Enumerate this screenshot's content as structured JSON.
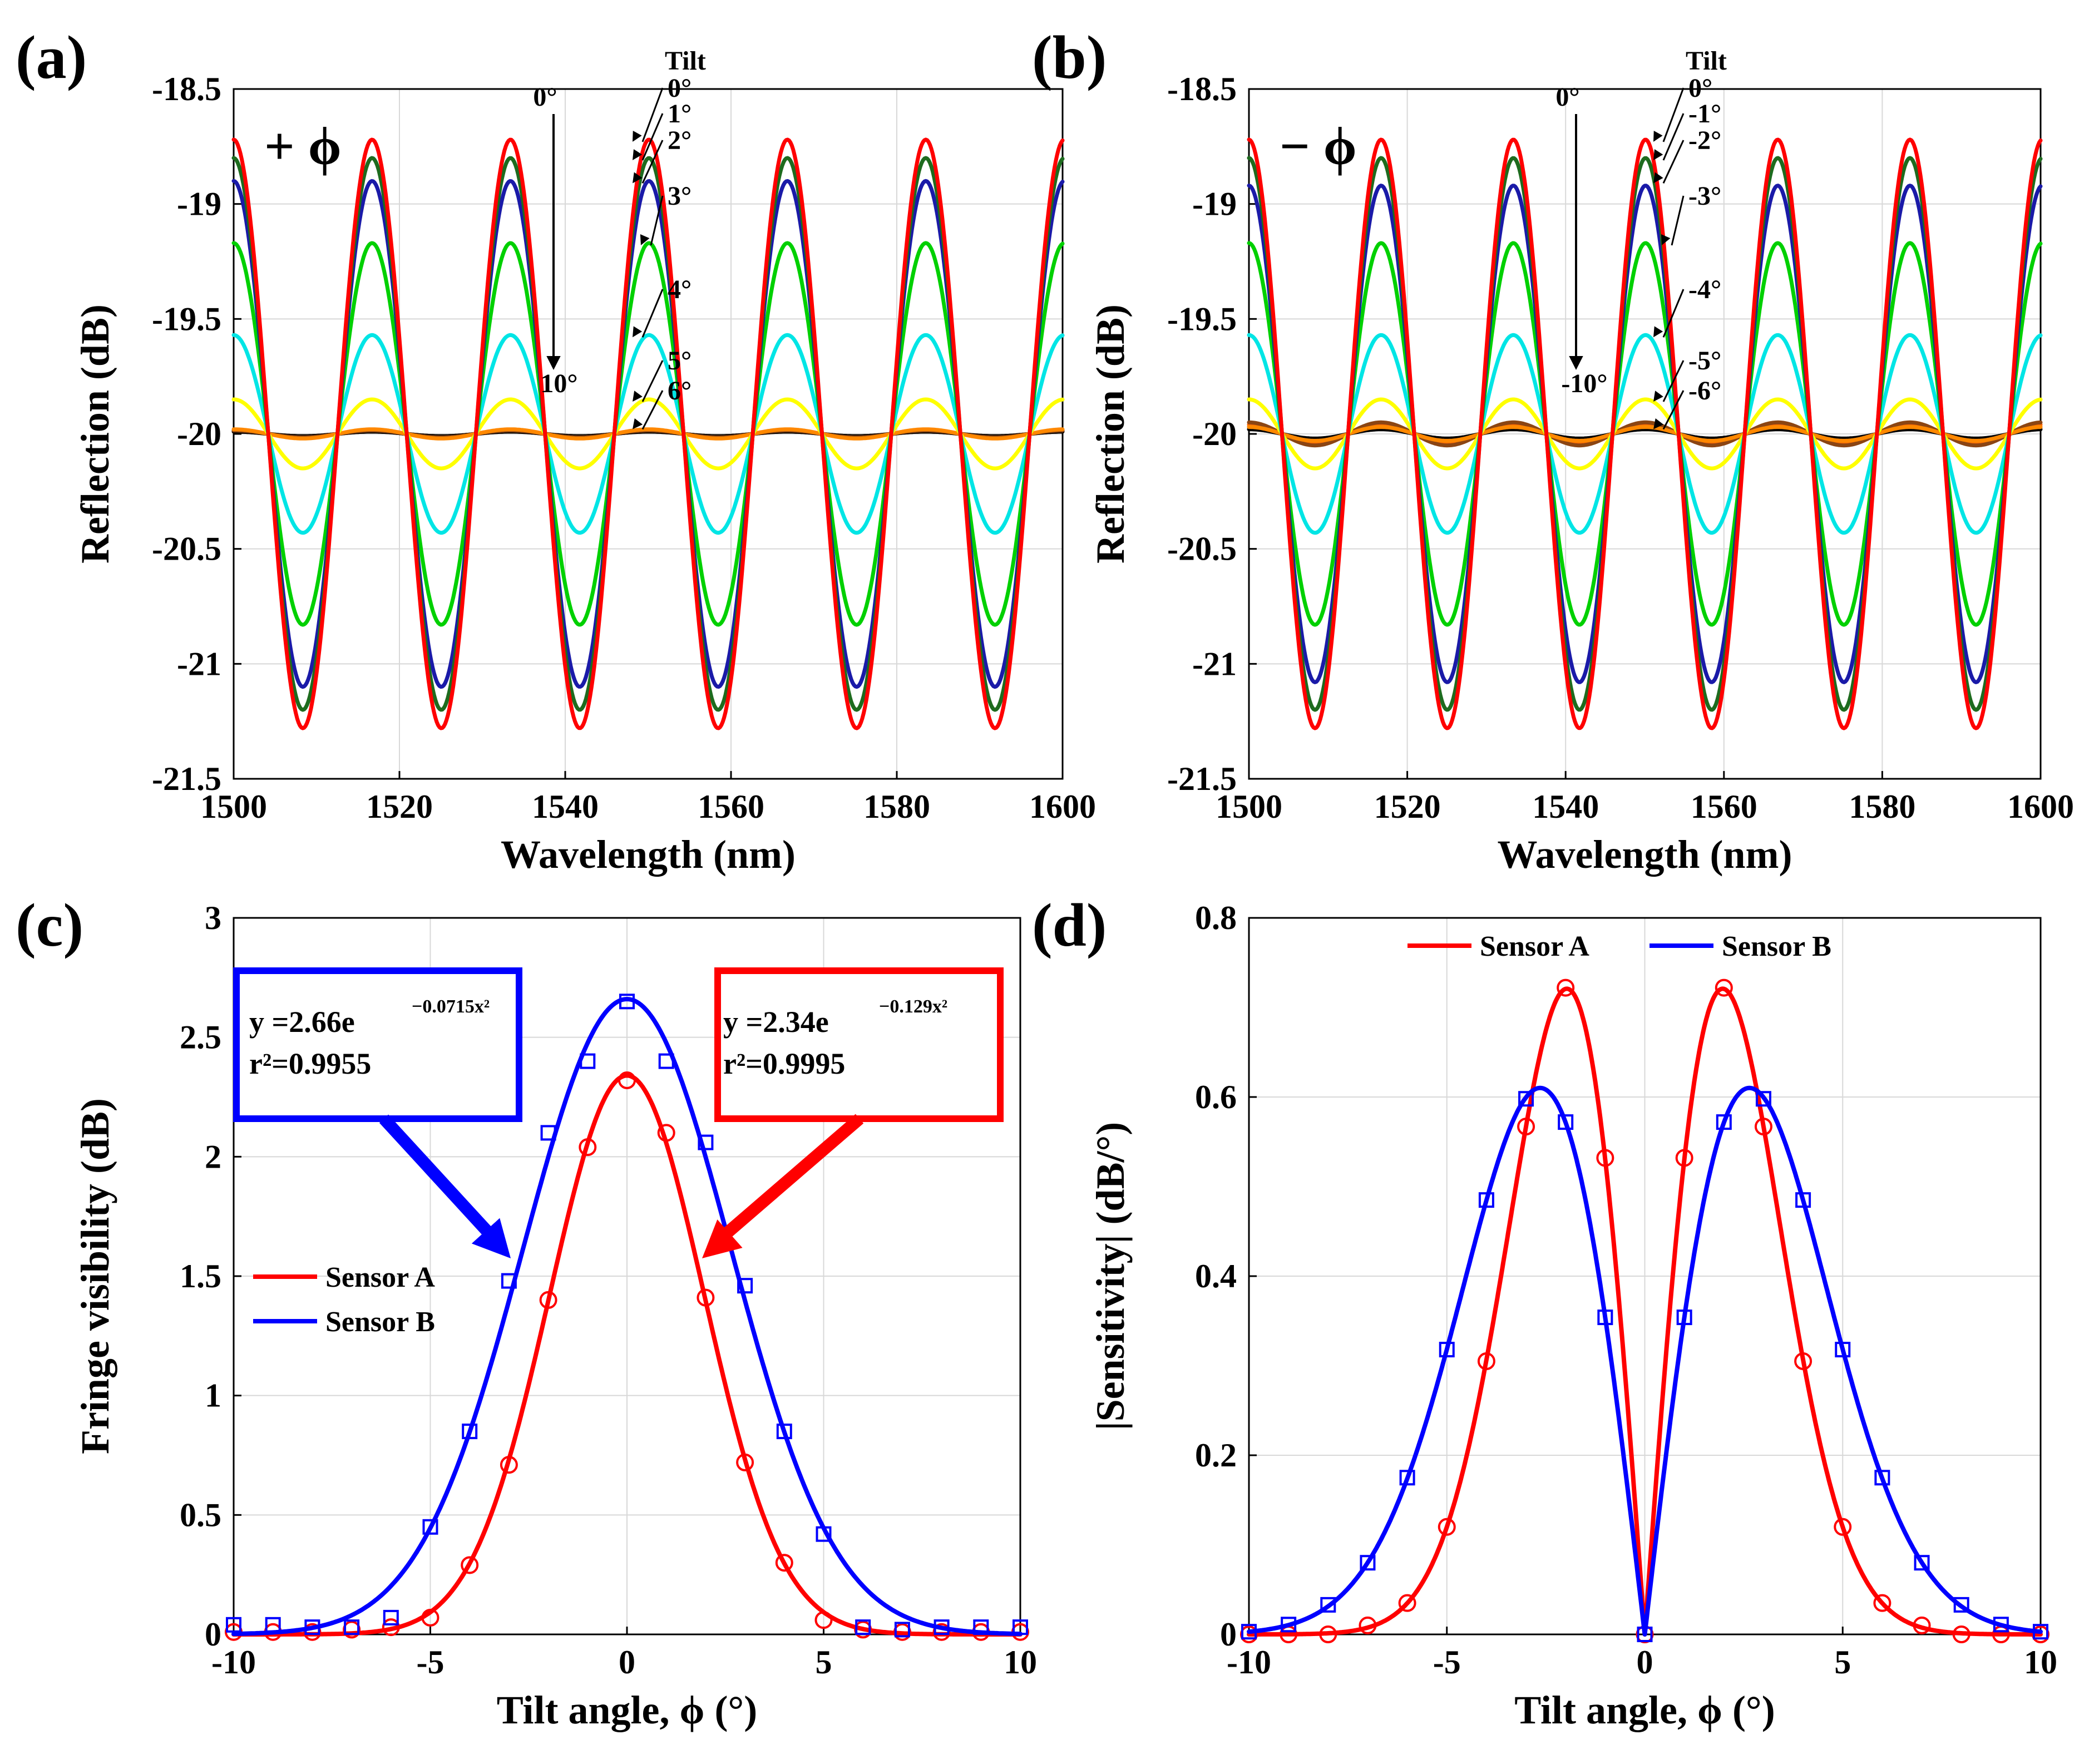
{
  "panels": {
    "a": {
      "label": "(a)",
      "sign": "+ ϕ",
      "tilt_header": "Tilt",
      "arrow_top": "0°",
      "arrow_bottom": "10°",
      "tilt_labels": [
        "0°",
        "1°",
        "2°",
        "3°",
        "4°",
        "5°",
        "6°"
      ]
    },
    "b": {
      "label": "(b)",
      "sign": "− ϕ",
      "tilt_header": "Tilt",
      "arrow_top": "0°",
      "arrow_bottom": "-10°",
      "tilt_labels": [
        "0°",
        "-1°",
        "-2°",
        "-3°",
        "-4°",
        "-5°",
        "-6°"
      ]
    },
    "c": {
      "label": "(c)",
      "eq_blue": {
        "prefix": "y =2.66e",
        "exponent": "−0.0715x²",
        "r2": "r²=0.9955"
      },
      "eq_red": {
        "prefix": "y =2.34e",
        "exponent": "−0.129x²",
        "r2": "r²=0.9995"
      }
    },
    "d": {
      "label": "(d)"
    }
  },
  "chart_data": [
    {
      "id": "a",
      "type": "line",
      "xlabel": "Wavelength (nm)",
      "ylabel": "Reflection (dB)",
      "xlim": [
        1500,
        1600
      ],
      "ylim": [
        -21.5,
        -18.5
      ],
      "xticks": [
        1500,
        1520,
        1540,
        1560,
        1580,
        1600
      ],
      "yticks": [
        -21.5,
        -21,
        -20.5,
        -20,
        -19.5,
        -19,
        -18.5
      ],
      "grid": true,
      "fringe_period_nm": 16.7,
      "fringe_center_db": -20.0,
      "series": [
        {
          "tilt": 0,
          "amplitude_db": 1.28,
          "color": "#ff0000"
        },
        {
          "tilt": 1,
          "amplitude_db": 1.2,
          "color": "#1e6b1e"
        },
        {
          "tilt": 2,
          "amplitude_db": 1.1,
          "color": "#1a1aa8"
        },
        {
          "tilt": 3,
          "amplitude_db": 0.83,
          "color": "#00d000"
        },
        {
          "tilt": 4,
          "amplitude_db": 0.43,
          "color": "#00e5e5"
        },
        {
          "tilt": 5,
          "amplitude_db": 0.15,
          "color": "#ffff00"
        },
        {
          "tilt": 6,
          "amplitude_db": 0.02,
          "color": "#ff8800"
        },
        {
          "tilt": 7,
          "amplitude_db": 0.015,
          "color": "#8b4513"
        },
        {
          "tilt": 8,
          "amplitude_db": 0.01,
          "color": "#000000"
        },
        {
          "tilt": 9,
          "amplitude_db": 0.012,
          "color": "#ff6600"
        },
        {
          "tilt": 10,
          "amplitude_db": 0.01,
          "color": "#cc4400"
        }
      ]
    },
    {
      "id": "b",
      "type": "line",
      "xlabel": "Wavelength (nm)",
      "ylabel": "Reflection (dB)",
      "xlim": [
        1500,
        1600
      ],
      "ylim": [
        -21.5,
        -18.5
      ],
      "xticks": [
        1500,
        1520,
        1540,
        1560,
        1580,
        1600
      ],
      "yticks": [
        -21.5,
        -21,
        -20.5,
        -20,
        -19.5,
        -19,
        -18.5
      ],
      "grid": true,
      "fringe_period_nm": 16.7,
      "fringe_center_db": -20.0,
      "series": [
        {
          "tilt": 0,
          "amplitude_db": 1.28,
          "color": "#ff0000"
        },
        {
          "tilt": -1,
          "amplitude_db": 1.2,
          "color": "#1e6b1e"
        },
        {
          "tilt": -2,
          "amplitude_db": 1.08,
          "color": "#1a1aa8"
        },
        {
          "tilt": -3,
          "amplitude_db": 0.83,
          "color": "#00d000"
        },
        {
          "tilt": -4,
          "amplitude_db": 0.43,
          "color": "#00e5e5"
        },
        {
          "tilt": -5,
          "amplitude_db": 0.15,
          "color": "#ffff00"
        },
        {
          "tilt": -6,
          "amplitude_db": 0.03,
          "color": "#ff8800"
        },
        {
          "tilt": -7,
          "amplitude_db": 0.05,
          "color": "#8b4513"
        },
        {
          "tilt": -8,
          "amplitude_db": 0.02,
          "color": "#000000"
        },
        {
          "tilt": -9,
          "amplitude_db": 0.04,
          "color": "#ff6600"
        },
        {
          "tilt": -10,
          "amplitude_db": 0.03,
          "color": "#cc4400"
        }
      ]
    },
    {
      "id": "c",
      "type": "line",
      "xlabel": "Tilt angle, ϕ (°)",
      "ylabel": "Fringe visibility (dB)",
      "xlim": [
        -10,
        10
      ],
      "ylim": [
        0,
        3
      ],
      "xticks": [
        -10,
        -5,
        0,
        5,
        10
      ],
      "yticks": [
        0,
        0.5,
        1,
        1.5,
        2,
        2.5,
        3
      ],
      "grid": true,
      "legend_position": "center-left",
      "series": [
        {
          "name": "Sensor A",
          "color": "#ff0000",
          "marker": "circle",
          "fit": {
            "a": 2.34,
            "b": 0.129
          },
          "x": [
            -10,
            -9,
            -8,
            -7,
            -6,
            -5,
            -4,
            -3,
            -2,
            -1,
            0,
            1,
            2,
            3,
            4,
            5,
            6,
            7,
            8,
            9,
            10
          ],
          "y": [
            0.01,
            0.01,
            0.01,
            0.02,
            0.03,
            0.07,
            0.29,
            0.71,
            1.4,
            2.04,
            2.32,
            2.1,
            1.41,
            0.72,
            0.3,
            0.06,
            0.02,
            0.01,
            0.01,
            0.01,
            0.01
          ]
        },
        {
          "name": "Sensor B",
          "color": "#0000ff",
          "marker": "square",
          "fit": {
            "a": 2.66,
            "b": 0.0715
          },
          "x": [
            -10,
            -9,
            -8,
            -7,
            -6,
            -5,
            -4,
            -3,
            -2,
            -1,
            0,
            1,
            2,
            3,
            4,
            5,
            6,
            7,
            8,
            9,
            10
          ],
          "y": [
            0.04,
            0.04,
            0.03,
            0.03,
            0.07,
            0.45,
            0.85,
            1.48,
            2.1,
            2.4,
            2.65,
            2.4,
            2.06,
            1.46,
            0.85,
            0.42,
            0.03,
            0.02,
            0.03,
            0.03,
            0.03
          ]
        }
      ]
    },
    {
      "id": "d",
      "type": "line",
      "xlabel": "Tilt angle, ϕ (°)",
      "ylabel": "|Sensitivity| (dB/°)",
      "xlim": [
        -10,
        10
      ],
      "ylim": [
        0,
        0.8
      ],
      "xticks": [
        -10,
        -5,
        0,
        5,
        10
      ],
      "yticks": [
        0,
        0.2,
        0.4,
        0.6,
        0.8
      ],
      "grid": true,
      "legend_position": "top",
      "series": [
        {
          "name": "Sensor A",
          "color": "#ff0000",
          "marker": "circle",
          "fit": {
            "a": 2.34,
            "b": 0.129
          },
          "x": [
            -10,
            -9,
            -8,
            -7,
            -6,
            -5,
            -4,
            -3,
            -2,
            -1,
            0,
            1,
            2,
            3,
            4,
            5,
            6,
            7,
            8,
            9,
            10
          ],
          "y": [
            0.0,
            0.0,
            0.0,
            0.01,
            0.035,
            0.12,
            0.305,
            0.567,
            0.722,
            0.532,
            0.0,
            0.532,
            0.722,
            0.567,
            0.305,
            0.12,
            0.035,
            0.01,
            0.0,
            0.0,
            0.0
          ]
        },
        {
          "name": "Sensor B",
          "color": "#0000ff",
          "marker": "square",
          "fit": {
            "a": 2.66,
            "b": 0.0715
          },
          "x": [
            -10,
            -9,
            -8,
            -7,
            -6,
            -5,
            -4,
            -3,
            -2,
            -1,
            0,
            1,
            2,
            3,
            4,
            5,
            6,
            7,
            8,
            9,
            10
          ],
          "y": [
            0.003,
            0.011,
            0.033,
            0.08,
            0.175,
            0.318,
            0.485,
            0.598,
            0.572,
            0.354,
            0.0,
            0.354,
            0.572,
            0.598,
            0.485,
            0.318,
            0.175,
            0.08,
            0.033,
            0.011,
            0.003
          ]
        }
      ]
    }
  ]
}
